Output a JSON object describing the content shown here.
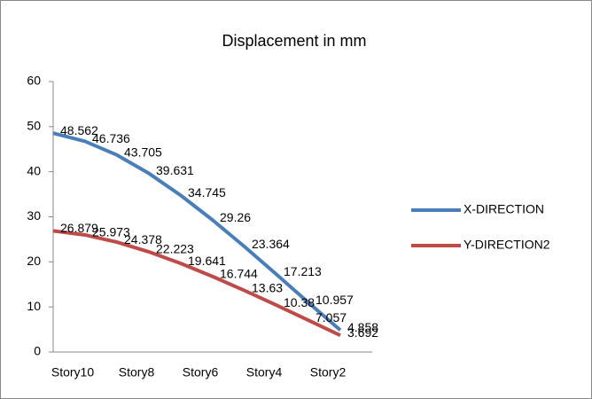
{
  "chart_data": {
    "type": "line",
    "title": "Displacement in mm",
    "categories": [
      "Story10",
      null,
      "Story8",
      null,
      "Story6",
      null,
      "Story4",
      null,
      "Story2",
      null
    ],
    "series": [
      {
        "name": "X-DIRECTION",
        "color": "#4a7ebb",
        "values": [
          48.562,
          46.736,
          43.705,
          39.631,
          34.745,
          29.26,
          23.364,
          17.213,
          10.957,
          4.858
        ]
      },
      {
        "name": "Y-DIRECTION2",
        "color": "#be4b48",
        "values": [
          26.879,
          25.973,
          24.378,
          22.223,
          19.641,
          16.744,
          13.63,
          10.38,
          7.057,
          3.692
        ]
      }
    ],
    "ylim": [
      0,
      60
    ],
    "yticks": [
      0,
      10,
      20,
      30,
      40,
      50,
      60
    ],
    "grid": false,
    "legend": "right"
  }
}
